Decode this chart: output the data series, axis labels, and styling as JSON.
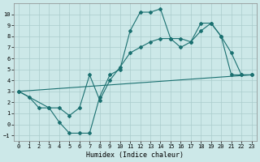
{
  "xlabel": "Humidex (Indice chaleur)",
  "background_color": "#cce8e8",
  "grid_color": "#aacccc",
  "line_color": "#1a7070",
  "xlim": [
    -0.5,
    23.5
  ],
  "ylim": [
    -1.5,
    11
  ],
  "xticks": [
    0,
    1,
    2,
    3,
    4,
    5,
    6,
    7,
    8,
    9,
    10,
    11,
    12,
    13,
    14,
    15,
    16,
    17,
    18,
    19,
    20,
    21,
    22,
    23
  ],
  "yticks": [
    -1,
    0,
    1,
    2,
    3,
    4,
    5,
    6,
    7,
    8,
    9,
    10
  ],
  "line1_x": [
    0,
    1,
    2,
    3,
    4,
    5,
    6,
    7,
    8,
    9,
    10,
    11,
    12,
    13,
    14,
    15,
    16,
    17,
    18,
    19,
    20,
    21,
    22,
    23
  ],
  "line1_y": [
    3.0,
    2.5,
    1.5,
    1.5,
    0.2,
    -0.8,
    -0.8,
    -0.8,
    2.5,
    4.5,
    5.0,
    8.5,
    10.2,
    10.2,
    10.5,
    7.8,
    7.8,
    7.5,
    9.2,
    9.2,
    8.0,
    6.5,
    4.5,
    4.5
  ],
  "line2_x": [
    0,
    23
  ],
  "line2_y": [
    3.0,
    4.5
  ],
  "line3_x": [
    0,
    3,
    4,
    5,
    6,
    7,
    8,
    9,
    10,
    11,
    12,
    13,
    14,
    15,
    16,
    17,
    18,
    19,
    20,
    21,
    22,
    23
  ],
  "line3_y": [
    3.0,
    1.5,
    1.5,
    0.8,
    1.5,
    4.5,
    2.2,
    4.0,
    5.2,
    6.5,
    7.0,
    7.5,
    7.8,
    7.8,
    7.0,
    7.5,
    8.5,
    9.2,
    8.0,
    4.5,
    4.5,
    4.5
  ]
}
